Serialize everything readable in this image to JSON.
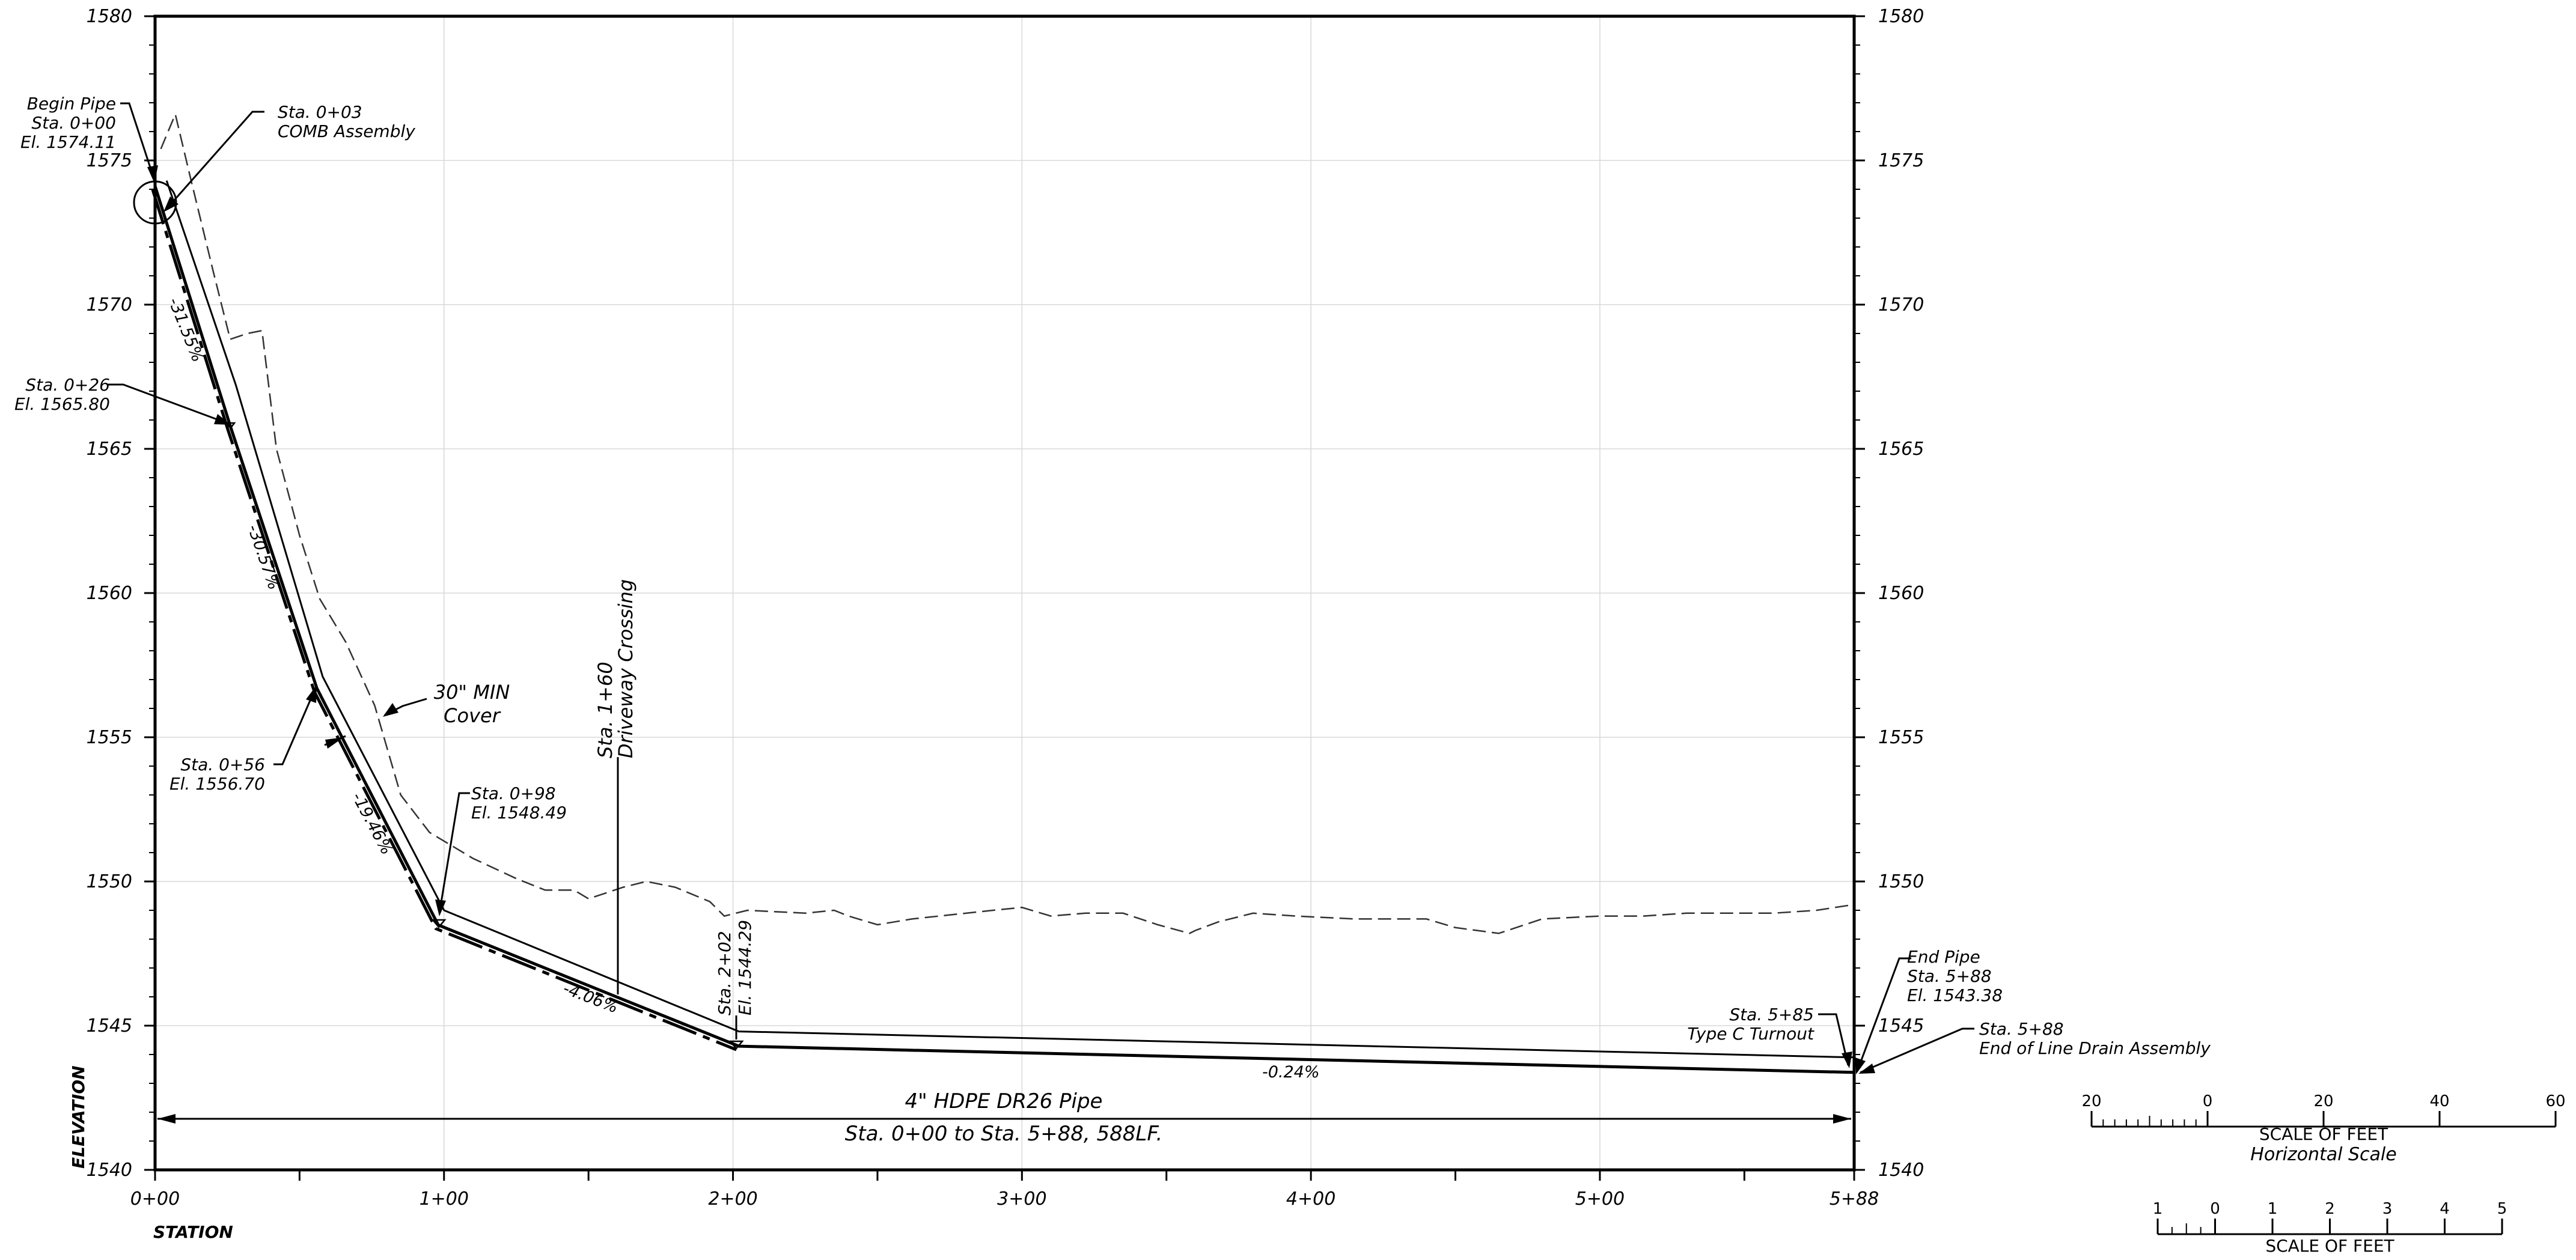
{
  "chart_data": {
    "type": "line",
    "x_unit": "ft",
    "y_unit": "ft",
    "xlim": [
      0,
      588
    ],
    "ylim": [
      1540,
      1580
    ],
    "x_ticks": [
      {
        "value": 0,
        "label": "0+00"
      },
      {
        "value": 100,
        "label": "1+00"
      },
      {
        "value": 200,
        "label": "2+00"
      },
      {
        "value": 300,
        "label": "3+00"
      },
      {
        "value": 400,
        "label": "4+00"
      },
      {
        "value": 500,
        "label": "5+00"
      },
      {
        "value": 588,
        "label": "5+88"
      }
    ],
    "y_ticks": [
      {
        "value": 1540,
        "label": "1540"
      },
      {
        "value": 1545,
        "label": "1545"
      },
      {
        "value": 1550,
        "label": "1550"
      },
      {
        "value": 1555,
        "label": "1555"
      },
      {
        "value": 1560,
        "label": "1560"
      },
      {
        "value": 1565,
        "label": "1565"
      },
      {
        "value": 1570,
        "label": "1570"
      },
      {
        "value": 1575,
        "label": "1575"
      },
      {
        "value": 1580,
        "label": "1580"
      }
    ],
    "xlabel": "STATION",
    "ylabel": "ELEVATION",
    "series": [
      {
        "style": "solid",
        "values": [
          [
            0,
            1574.11
          ],
          [
            26,
            1565.8
          ],
          [
            56,
            1556.7
          ],
          [
            98,
            1548.49
          ],
          [
            202,
            1544.29
          ],
          [
            588,
            1543.38
          ]
        ]
      },
      {
        "style": "solid-thin",
        "values": [
          [
            4,
            1574.3
          ],
          [
            28,
            1567.2
          ],
          [
            58,
            1557.1
          ],
          [
            100,
            1549.0
          ],
          [
            202,
            1544.8
          ],
          [
            588,
            1543.9
          ]
        ]
      },
      {
        "style": "dashed",
        "values": [
          [
            2,
            1575.4
          ],
          [
            7,
            1576.6
          ],
          [
            12,
            1574.5
          ],
          [
            20,
            1571.2
          ],
          [
            26,
            1568.8
          ],
          [
            32,
            1569.0
          ],
          [
            37,
            1569.1
          ],
          [
            42,
            1565.0
          ],
          [
            50,
            1562.0
          ],
          [
            57,
            1559.8
          ],
          [
            66,
            1558.3
          ],
          [
            76,
            1556.1
          ],
          [
            85,
            1553.0
          ],
          [
            95,
            1551.7
          ],
          [
            110,
            1550.8
          ],
          [
            125,
            1550.1
          ],
          [
            135,
            1549.7
          ],
          [
            145,
            1549.7
          ],
          [
            150,
            1549.4
          ],
          [
            162,
            1549.8
          ],
          [
            170,
            1550.0
          ],
          [
            180,
            1549.8
          ],
          [
            192,
            1549.3
          ],
          [
            197,
            1548.8
          ],
          [
            205,
            1549.0
          ],
          [
            225,
            1548.9
          ],
          [
            235,
            1549.0
          ],
          [
            240,
            1548.8
          ],
          [
            250,
            1548.5
          ],
          [
            262,
            1548.7
          ],
          [
            290,
            1549.0
          ],
          [
            300,
            1549.1
          ],
          [
            310,
            1548.8
          ],
          [
            322,
            1548.9
          ],
          [
            335,
            1548.9
          ],
          [
            347,
            1548.5
          ],
          [
            358,
            1548.2
          ],
          [
            360,
            1548.3
          ],
          [
            368,
            1548.6
          ],
          [
            380,
            1548.9
          ],
          [
            395,
            1548.8
          ],
          [
            415,
            1548.7
          ],
          [
            440,
            1548.7
          ],
          [
            450,
            1548.4
          ],
          [
            465,
            1548.2
          ],
          [
            480,
            1548.7
          ],
          [
            500,
            1548.8
          ],
          [
            515,
            1548.8
          ],
          [
            530,
            1548.9
          ],
          [
            560,
            1548.9
          ],
          [
            575,
            1549.0
          ],
          [
            588,
            1549.2
          ]
        ]
      }
    ],
    "grades": [
      "-31.55%",
      "-30.57%",
      "-19.46%",
      "-4.06%",
      "-0.24%"
    ],
    "annotations": [
      "Begin Pipe",
      "Sta. 0+00",
      "El. 1574.11",
      "Sta. 0+03",
      "COMB Assembly",
      "Sta. 0+26",
      "El. 1565.80",
      "Sta. 0+56",
      "El. 1556.70",
      "Sta. 0+98",
      "El. 1548.49",
      "Sta. 1+60",
      "Driveway Crossing",
      "Sta. 2+02",
      "El. 1544.29",
      "30\" MIN",
      "Cover",
      "Sta. 5+85",
      "Type C Turnout",
      "End Pipe",
      "Sta. 5+88",
      "El. 1543.38",
      "Sta. 5+88",
      "End of Line Drain Assembly",
      "4\" HDPE DR26 Pipe",
      "Sta. 0+00 to Sta. 5+88, 588LF."
    ]
  },
  "labels": {
    "begin_pipe": [
      "Begin Pipe",
      "Sta. 0+00",
      "El. 1574.11"
    ],
    "comb": [
      "Sta. 0+03",
      "COMB Assembly"
    ],
    "sta026": [
      "Sta. 0+26",
      "El. 1565.80"
    ],
    "sta056": [
      "Sta. 0+56",
      "El. 1556.70"
    ],
    "sta098": [
      "Sta. 0+98",
      "El. 1548.49"
    ],
    "driveway": [
      "Sta. 1+60",
      "Driveway Crossing"
    ],
    "sta202": [
      "Sta. 2+02",
      "El. 1544.29"
    ],
    "cover": [
      "30\" MIN",
      "Cover"
    ],
    "turnout": [
      "Sta. 5+85",
      "Type C Turnout"
    ],
    "end_pipe": [
      "End Pipe",
      "Sta. 5+88",
      "El. 1543.38"
    ],
    "drain": [
      "Sta. 5+88",
      "End of Line Drain Assembly"
    ],
    "pipe": [
      "4\" HDPE DR26 Pipe",
      "Sta. 0+00 to Sta. 5+88, 588LF."
    ]
  },
  "scales": [
    {
      "title": "SCALE OF FEET",
      "subtitle": "Horizontal Scale",
      "ticks": [
        {
          "value": -20,
          "label": "20"
        },
        {
          "value": 0,
          "label": "0"
        },
        {
          "value": 20,
          "label": "20"
        },
        {
          "value": 40,
          "label": "40"
        },
        {
          "value": 60,
          "label": "60"
        }
      ]
    },
    {
      "title": "SCALE OF FEET",
      "subtitle": "",
      "ticks": [
        {
          "value": -1,
          "label": "1"
        },
        {
          "value": 0,
          "label": "0"
        },
        {
          "value": 1,
          "label": "1"
        },
        {
          "value": 2,
          "label": "2"
        },
        {
          "value": 3,
          "label": "3"
        },
        {
          "value": 4,
          "label": "4"
        },
        {
          "value": 5,
          "label": "5"
        }
      ]
    }
  ]
}
